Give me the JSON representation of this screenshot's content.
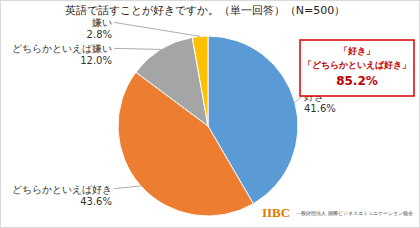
{
  "chart_data": {
    "type": "pie",
    "title": "英語で話すことが好きですか。（単一回答）（N=500）",
    "categories": [
      "好き",
      "どちらかといえば好き",
      "どちらかといえば嫌い",
      "嫌い"
    ],
    "values": [
      41.6,
      43.6,
      12.0,
      2.8
    ],
    "value_labels": [
      "41.6%",
      "43.6%",
      "12.0%",
      "2.8%"
    ],
    "colors": [
      "#5b9bd5",
      "#ed7d31",
      "#a5a5a5",
      "#ffc000"
    ],
    "data_labels": true,
    "annotations": [
      "「好き」",
      "「どちらかといえば好き」",
      "85.2%"
    ],
    "logo": "IIBC",
    "organization": "一般財団法人 国際ビジネスコミュニケーション協会"
  }
}
